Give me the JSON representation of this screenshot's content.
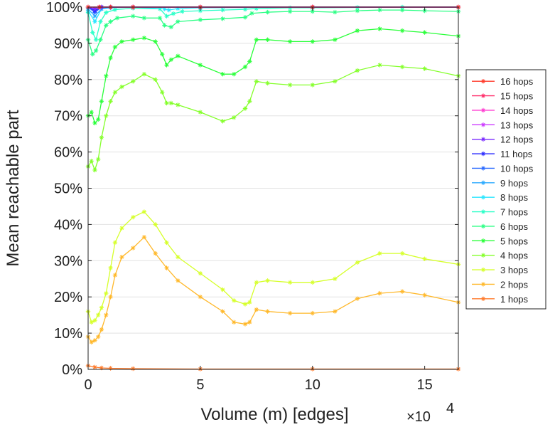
{
  "chart_data": {
    "type": "line",
    "xlabel": "Volume (m) [edges]",
    "ylabel": "Mean reachable part",
    "x_multiplier": "×10",
    "x_multiplier_exp": "4",
    "xlim": [
      0,
      16.5
    ],
    "ylim": [
      0,
      100
    ],
    "xticks": [
      0,
      5,
      10,
      15
    ],
    "xtick_labels": [
      "0",
      "5",
      "10",
      "15"
    ],
    "yticks": [
      0,
      10,
      20,
      30,
      40,
      50,
      60,
      70,
      80,
      90,
      100
    ],
    "ytick_labels": [
      "0%",
      "10%",
      "20%",
      "30%",
      "40%",
      "50%",
      "60%",
      "70%",
      "80%",
      "90%",
      "100%"
    ],
    "grid": true,
    "legend_position": "right",
    "marker": "asterisk",
    "series": [
      {
        "name": "16 hops",
        "color": "#ff3a2a",
        "x": [
          0,
          0.5,
          1,
          2,
          5,
          10,
          16.5
        ],
        "y": [
          100,
          100,
          100,
          100,
          100,
          100,
          100
        ]
      },
      {
        "name": "15 hops",
        "color": "#ff2e6a",
        "x": [
          0,
          0.5,
          1,
          2,
          5,
          10,
          16.5
        ],
        "y": [
          100,
          100,
          100,
          100,
          100,
          100,
          100
        ]
      },
      {
        "name": "14 hops",
        "color": "#ff3ad0",
        "x": [
          0,
          0.5,
          1,
          2,
          5,
          10,
          16.5
        ],
        "y": [
          100,
          100,
          100,
          100,
          100,
          100,
          100
        ]
      },
      {
        "name": "13 hops",
        "color": "#cc3aff",
        "x": [
          0,
          0.5,
          1,
          2,
          5,
          10,
          16.5
        ],
        "y": [
          100,
          100,
          100,
          100,
          100,
          100,
          100
        ]
      },
      {
        "name": "12 hops",
        "color": "#7a2aff",
        "x": [
          0,
          0.3,
          0.6,
          1,
          2,
          5,
          10,
          16.5
        ],
        "y": [
          100,
          99.5,
          100,
          100,
          100,
          100,
          100,
          100
        ]
      },
      {
        "name": "11 hops",
        "color": "#2a2aff",
        "x": [
          0,
          0.3,
          0.6,
          1,
          2,
          5,
          10,
          16.5
        ],
        "y": [
          100,
          99,
          100,
          100,
          100,
          100,
          100,
          100
        ]
      },
      {
        "name": "10 hops",
        "color": "#2a6aff",
        "x": [
          0,
          0.3,
          0.6,
          1,
          2,
          5,
          10,
          16.5
        ],
        "y": [
          100,
          98.5,
          100,
          100,
          100,
          100,
          100,
          100
        ]
      },
      {
        "name": "9 hops",
        "color": "#2aaaff",
        "x": [
          0,
          0.3,
          0.6,
          1,
          2,
          5,
          10,
          16.5
        ],
        "y": [
          99.5,
          97.5,
          99.5,
          100,
          100,
          100,
          100,
          100
        ]
      },
      {
        "name": "8 hops",
        "color": "#2ae6ff",
        "x": [
          0,
          0.3,
          0.6,
          1,
          2,
          3.4,
          3.6,
          4,
          5,
          10,
          16.5
        ],
        "y": [
          99,
          96,
          99.5,
          99.8,
          100,
          99.5,
          99.2,
          99.6,
          99.8,
          100,
          100
        ]
      },
      {
        "name": "7 hops",
        "color": "#2affc8",
        "x": [
          0,
          0.2,
          0.35,
          0.55,
          0.8,
          1.2,
          2,
          3.2,
          3.5,
          3.8,
          4.2,
          5,
          6,
          7,
          7.5,
          9,
          10,
          12,
          14,
          16.5
        ],
        "y": [
          98.5,
          93,
          91,
          96,
          98.5,
          99.3,
          99.7,
          99.5,
          97.5,
          98.2,
          98.8,
          99,
          99.2,
          99.4,
          99.6,
          99.8,
          99.8,
          99.9,
          100,
          100
        ]
      },
      {
        "name": "6 hops",
        "color": "#2aff84",
        "x": [
          0,
          0.2,
          0.35,
          0.55,
          0.8,
          1,
          1.3,
          2,
          2.5,
          3.2,
          3.4,
          3.7,
          4,
          5,
          6,
          7,
          7.3,
          8,
          9,
          10,
          11,
          12,
          13,
          14,
          15,
          16.5
        ],
        "y": [
          91,
          87,
          88,
          91,
          95,
          96,
          97,
          97.5,
          97,
          97,
          95,
          94.5,
          96,
          96.5,
          96.8,
          97.2,
          98.3,
          98.6,
          98.8,
          98.8,
          98.6,
          99,
          99.2,
          99.2,
          99,
          98.8
        ]
      },
      {
        "name": "5 hops",
        "color": "#2aff3a",
        "x": [
          0,
          0.15,
          0.3,
          0.45,
          0.6,
          0.8,
          1,
          1.2,
          1.5,
          2,
          2.5,
          3,
          3.3,
          3.5,
          3.7,
          4,
          5,
          6,
          6.5,
          7,
          7.2,
          7.5,
          8,
          9,
          10,
          11,
          12,
          13,
          14,
          15,
          16.5
        ],
        "y": [
          70,
          71,
          68,
          69,
          74,
          81,
          86,
          89,
          90.5,
          91,
          91.5,
          90.5,
          87,
          84,
          85.5,
          86.5,
          84,
          81.5,
          81.5,
          83.5,
          85,
          91,
          91,
          90.5,
          90.5,
          91,
          93.5,
          94,
          93.5,
          93,
          92
        ]
      },
      {
        "name": "4 hops",
        "color": "#84ff2a",
        "x": [
          0,
          0.15,
          0.3,
          0.45,
          0.6,
          0.8,
          1,
          1.2,
          1.5,
          2,
          2.5,
          3,
          3.3,
          3.5,
          3.7,
          4,
          5,
          6,
          6.5,
          7,
          7.2,
          7.5,
          8,
          9,
          10,
          11,
          12,
          13,
          14,
          15,
          16.5
        ],
        "y": [
          56,
          57.5,
          55,
          58,
          64,
          70,
          74,
          76.5,
          78,
          79.5,
          81.5,
          80,
          76.5,
          73.5,
          73.5,
          73,
          71,
          68.5,
          69.5,
          72,
          74,
          79.5,
          79,
          78.5,
          78.5,
          79.5,
          82.5,
          84,
          83.5,
          83,
          81
        ]
      },
      {
        "name": "3 hops",
        "color": "#d6ff2a",
        "x": [
          0,
          0.15,
          0.3,
          0.45,
          0.6,
          0.8,
          1,
          1.2,
          1.5,
          2,
          2.5,
          3,
          3.5,
          4,
          5,
          6,
          6.5,
          7,
          7.2,
          7.5,
          8,
          9,
          10,
          11,
          12,
          13,
          14,
          15,
          16.5
        ],
        "y": [
          16,
          13,
          13.5,
          15,
          17,
          21,
          28,
          35,
          39,
          42,
          43.5,
          40,
          35,
          31,
          26.5,
          22,
          19,
          18,
          18.5,
          24,
          24.5,
          24,
          24,
          25,
          29.5,
          32,
          32,
          30.5,
          29
        ]
      },
      {
        "name": "2 hops",
        "color": "#ffb82a",
        "x": [
          0,
          0.15,
          0.3,
          0.45,
          0.6,
          0.8,
          1,
          1.2,
          1.5,
          2,
          2.5,
          3,
          3.5,
          4,
          5,
          6,
          6.5,
          7,
          7.2,
          7.5,
          8,
          9,
          10,
          11,
          12,
          13,
          14,
          15,
          16.5
        ],
        "y": [
          9,
          7.5,
          8,
          9,
          11,
          15,
          20,
          26,
          31,
          33.5,
          36.5,
          32,
          28,
          24.5,
          20,
          16,
          13,
          12.5,
          13,
          16.5,
          16,
          15.5,
          15.5,
          16,
          19.5,
          21,
          21.5,
          20.5,
          18.5
        ]
      },
      {
        "name": "1 hops",
        "color": "#ff7a2a",
        "x": [
          0,
          0.3,
          0.6,
          1,
          2,
          5,
          10,
          16.5
        ],
        "y": [
          1,
          0.6,
          0.4,
          0.3,
          0.2,
          0.1,
          0.1,
          0.1
        ]
      }
    ]
  }
}
